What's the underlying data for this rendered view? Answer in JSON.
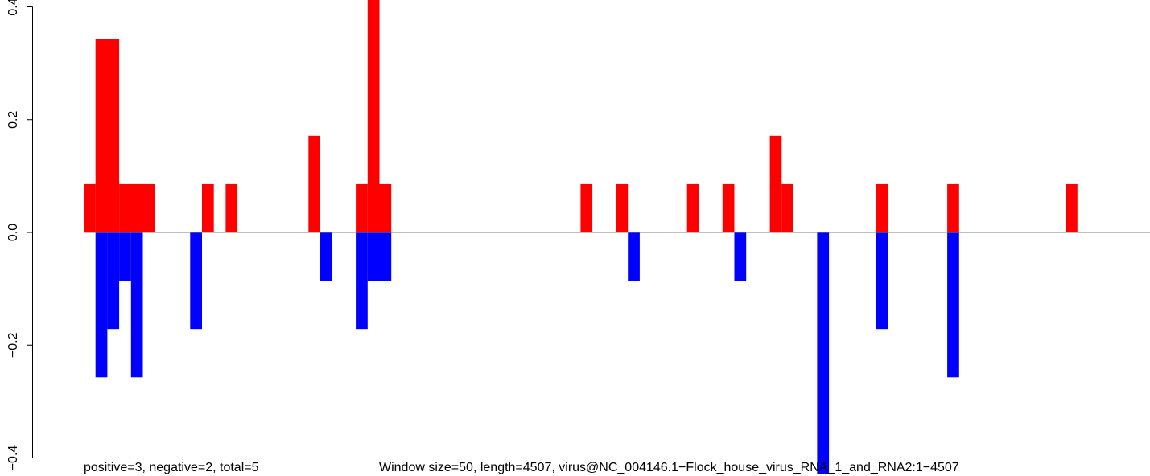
{
  "chart_data": {
    "type": "bar",
    "title": "",
    "xlabel": "",
    "ylabel": "",
    "ylim": [
      -0.4,
      0.4
    ],
    "yticks": [
      -0.4,
      -0.2,
      0.0,
      0.2,
      0.4
    ],
    "ytick_labels": [
      "−0.4",
      "−0.2",
      "0.0",
      "0.2",
      "0.4"
    ],
    "x_axis_visible": false,
    "grid": false,
    "zero_line_color": "#808080",
    "window_size": 50,
    "length": 4507,
    "series": [
      {
        "color": "#ff0000",
        "direction": "positive",
        "windows": [
          {
            "start": 0,
            "end": 50,
            "value": 0.0857
          },
          {
            "start": 50,
            "end": 150,
            "value": 0.3429
          },
          {
            "start": 150,
            "end": 300,
            "value": 0.0857
          },
          {
            "start": 500,
            "end": 550,
            "value": 0.0857
          },
          {
            "start": 600,
            "end": 650,
            "value": 0.0857
          },
          {
            "start": 950,
            "end": 1000,
            "value": 0.1714
          },
          {
            "start": 1150,
            "end": 1200,
            "value": 0.0857
          },
          {
            "start": 1200,
            "end": 1250,
            "value": 0.4286
          },
          {
            "start": 1250,
            "end": 1300,
            "value": 0.0857
          },
          {
            "start": 2100,
            "end": 2150,
            "value": 0.0857
          },
          {
            "start": 2250,
            "end": 2300,
            "value": 0.0857
          },
          {
            "start": 2550,
            "end": 2600,
            "value": 0.0857
          },
          {
            "start": 2700,
            "end": 2750,
            "value": 0.0857
          },
          {
            "start": 2900,
            "end": 2950,
            "value": 0.1714
          },
          {
            "start": 2950,
            "end": 3000,
            "value": 0.0857
          },
          {
            "start": 3350,
            "end": 3400,
            "value": 0.0857
          },
          {
            "start": 3650,
            "end": 3700,
            "value": 0.0857
          },
          {
            "start": 4150,
            "end": 4200,
            "value": 0.0857
          }
        ]
      },
      {
        "color": "#0000ff",
        "direction": "negative",
        "windows": [
          {
            "start": 50,
            "end": 100,
            "value": -0.2571
          },
          {
            "start": 100,
            "end": 150,
            "value": -0.1714
          },
          {
            "start": 150,
            "end": 200,
            "value": -0.0857
          },
          {
            "start": 200,
            "end": 250,
            "value": -0.2571
          },
          {
            "start": 450,
            "end": 500,
            "value": -0.1714
          },
          {
            "start": 1000,
            "end": 1050,
            "value": -0.0857
          },
          {
            "start": 1150,
            "end": 1200,
            "value": -0.1714
          },
          {
            "start": 1200,
            "end": 1300,
            "value": -0.0857
          },
          {
            "start": 2300,
            "end": 2350,
            "value": -0.0857
          },
          {
            "start": 2750,
            "end": 2800,
            "value": -0.0857
          },
          {
            "start": 3100,
            "end": 3150,
            "value": -0.4286
          },
          {
            "start": 3350,
            "end": 3400,
            "value": -0.1714
          },
          {
            "start": 3650,
            "end": 3700,
            "value": -0.2571
          }
        ]
      }
    ],
    "annotations": {
      "counts": "positive=3, negative=2, total=5",
      "info": "Window size=50, length=4507, virus@NC_004146.1−Flock_house_virus_RNA_1_and_RNA2:1−4507"
    }
  }
}
